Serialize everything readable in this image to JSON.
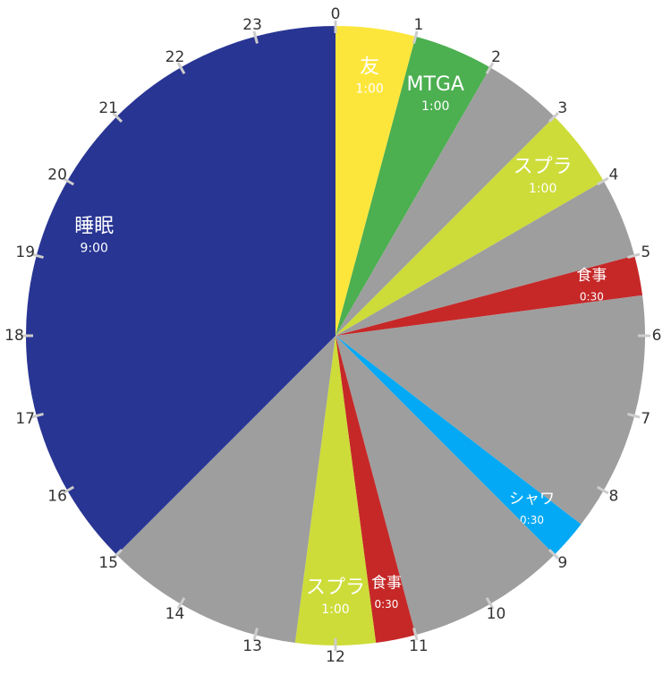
{
  "chart_data": {
    "type": "pie",
    "categories": [
      "友",
      "MTGA",
      null,
      "スプラ",
      null,
      "食事",
      null,
      "シャワ",
      null,
      "食事",
      "スプラ",
      null,
      "睡眠"
    ],
    "values": [
      1,
      1,
      1,
      1,
      1,
      0.5,
      3,
      0.5,
      2,
      0.5,
      1,
      2.5,
      9
    ],
    "value_labels": [
      "1:00",
      "1:00",
      null,
      "1:00",
      null,
      "0:30",
      null,
      "0:30",
      null,
      "0:30",
      "1:00",
      null,
      "9:00"
    ],
    "colors": [
      "#fde63c",
      "#4caf50",
      "#9e9e9e",
      "#cddc39",
      "#9e9e9e",
      "#c62828",
      "#9e9e9e",
      "#03a9f4",
      "#9e9e9e",
      "#c62828",
      "#cddc39",
      "#9e9e9e",
      "#283593"
    ],
    "ticks": [
      0,
      1,
      2,
      3,
      4,
      5,
      6,
      7,
      8,
      9,
      10,
      11,
      12,
      13,
      14,
      15,
      16,
      17,
      18,
      19,
      20,
      21,
      22,
      23
    ],
    "total": 24
  }
}
